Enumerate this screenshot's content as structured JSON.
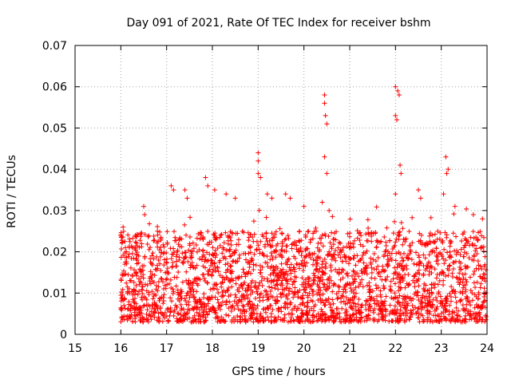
{
  "chart_data": {
    "type": "scatter",
    "title": "Day 091 of 2021, Rate Of TEC Index for receiver bshm",
    "xlabel": "GPS time / hours",
    "ylabel": "ROTI / TECUs",
    "xlim": [
      15,
      24
    ],
    "ylim": [
      0,
      0.07
    ],
    "x_ticks": [
      15,
      16,
      17,
      18,
      19,
      20,
      21,
      22,
      23,
      24
    ],
    "y_ticks": [
      0,
      0.01,
      0.02,
      0.03,
      0.04,
      0.05,
      0.06,
      0.07
    ],
    "x_tick_labels": [
      "15",
      "16",
      "17",
      "18",
      "19",
      "20",
      "21",
      "22",
      "23",
      "24"
    ],
    "y_tick_labels": [
      "0",
      "0.01",
      "0.02",
      "0.03",
      "0.04",
      "0.05",
      "0.06",
      "0.07"
    ],
    "grid": true,
    "marker": "+",
    "marker_color": "#ff0000",
    "series": [
      {
        "name": "ROTI",
        "points": [
          [
            16.0,
            0.024
          ],
          [
            16.05,
            0.026
          ],
          [
            16.1,
            0.021
          ],
          [
            16.5,
            0.031
          ],
          [
            16.52,
            0.029
          ],
          [
            16.8,
            0.025
          ],
          [
            17.1,
            0.036
          ],
          [
            17.15,
            0.035
          ],
          [
            17.4,
            0.035
          ],
          [
            17.45,
            0.033
          ],
          [
            17.85,
            0.038
          ],
          [
            17.9,
            0.036
          ],
          [
            18.05,
            0.035
          ],
          [
            18.3,
            0.034
          ],
          [
            18.5,
            0.033
          ],
          [
            19.0,
            0.044
          ],
          [
            19.0,
            0.042
          ],
          [
            19.0,
            0.039
          ],
          [
            19.05,
            0.038
          ],
          [
            19.2,
            0.034
          ],
          [
            19.3,
            0.033
          ],
          [
            19.6,
            0.034
          ],
          [
            19.7,
            0.033
          ],
          [
            20.0,
            0.031
          ],
          [
            20.45,
            0.058
          ],
          [
            20.45,
            0.056
          ],
          [
            20.47,
            0.053
          ],
          [
            20.5,
            0.051
          ],
          [
            20.45,
            0.043
          ],
          [
            20.5,
            0.039
          ],
          [
            20.4,
            0.032
          ],
          [
            20.55,
            0.03
          ],
          [
            22.0,
            0.06
          ],
          [
            22.05,
            0.059
          ],
          [
            22.08,
            0.058
          ],
          [
            22.0,
            0.053
          ],
          [
            22.03,
            0.052
          ],
          [
            22.1,
            0.041
          ],
          [
            22.12,
            0.039
          ],
          [
            22.0,
            0.034
          ],
          [
            22.5,
            0.035
          ],
          [
            22.55,
            0.033
          ],
          [
            23.1,
            0.043
          ],
          [
            23.15,
            0.04
          ],
          [
            23.12,
            0.039
          ],
          [
            23.05,
            0.034
          ],
          [
            23.3,
            0.031
          ],
          [
            23.7,
            0.029
          ],
          [
            23.9,
            0.028
          ]
        ]
      }
    ]
  }
}
